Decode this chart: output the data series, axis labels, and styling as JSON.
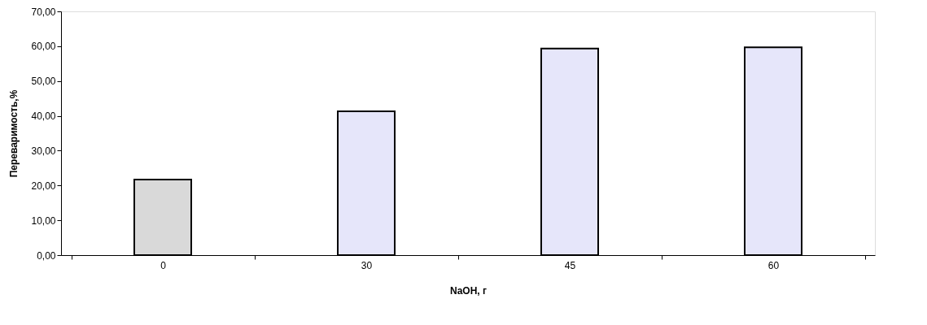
{
  "chart_data": {
    "type": "bar",
    "xlabel": "NaOH,  г",
    "ylabel": "Переваримость,%",
    "categories": [
      "0",
      "30",
      "45",
      "60"
    ],
    "values": [
      21.7,
      41.3,
      59.3,
      59.7
    ],
    "colors": [
      "#d9d9d9",
      "#e6e6fa",
      "#e6e6fa",
      "#e6e6fa"
    ],
    "ylim": [
      0,
      70
    ],
    "yticks": [
      {
        "value": 0,
        "label": "0,00"
      },
      {
        "value": 10,
        "label": "10,00"
      },
      {
        "value": 20,
        "label": "20,00"
      },
      {
        "value": 30,
        "label": "30,00"
      },
      {
        "value": 40,
        "label": "40,00"
      },
      {
        "value": 50,
        "label": "50,00"
      },
      {
        "value": 60,
        "label": "60,00"
      },
      {
        "value": 70,
        "label": "70,00"
      }
    ],
    "grid": false,
    "legend": false
  }
}
